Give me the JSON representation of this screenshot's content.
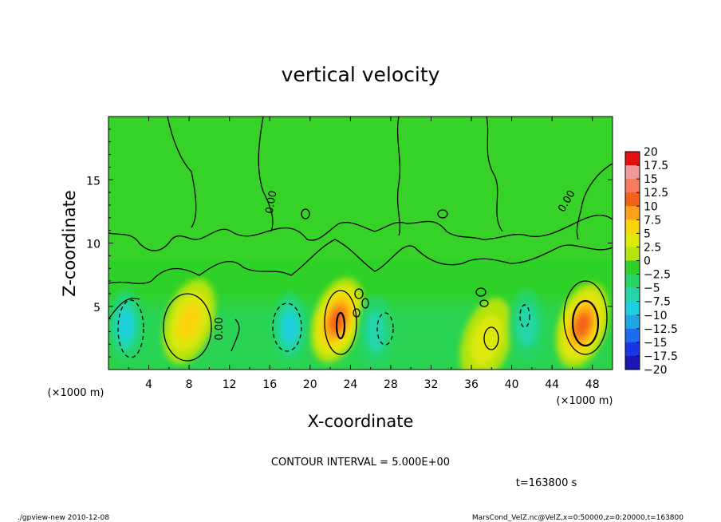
{
  "chart_data": {
    "type": "heatmap",
    "title": "vertical velocity",
    "xlabel": "X-coordinate",
    "ylabel": "Z-coordinate",
    "x_unit": "(×1000 m)",
    "y_unit": "(×1000 m)",
    "xlim": [
      0,
      50
    ],
    "ylim": [
      0,
      20
    ],
    "x_ticks": [
      4,
      8,
      12,
      16,
      20,
      24,
      28,
      32,
      36,
      40,
      44,
      48
    ],
    "y_ticks": [
      5,
      10,
      15
    ],
    "contour_interval": "CONTOUR INTERVAL = 5.000E+00",
    "time": "t=163800 s",
    "contour_label": "0.00",
    "colorbar": {
      "labels": [
        "20",
        "17.5",
        "15",
        "12.5",
        "10",
        "7.5",
        "5",
        "2.5",
        "0",
        "−2.5",
        "−5",
        "−7.5",
        "−10",
        "−12.5",
        "−15",
        "−17.5",
        "−20"
      ],
      "colors": [
        "#e71010",
        "#f29a9a",
        "#f87c5c",
        "#f46218",
        "#fba018",
        "#fbd40a",
        "#dee809",
        "#b4e30e",
        "#2ed127",
        "#27d466",
        "#22d6a8",
        "#1ecfe0",
        "#1fa4e6",
        "#1b6cf0",
        "#1636e8",
        "#1c16b5",
        "#5a15a8"
      ]
    },
    "features": [
      {
        "kind": "updraft",
        "x": 8.0,
        "z": 3.8,
        "peak": 7.5
      },
      {
        "kind": "updraft",
        "x": 22.7,
        "z": 3.9,
        "peak": 12.5
      },
      {
        "kind": "updraft",
        "x": 47.0,
        "z": 3.5,
        "peak": 12.5
      },
      {
        "kind": "updraft",
        "x": 37.5,
        "z": 2.3,
        "peak": 5
      },
      {
        "kind": "downdraft",
        "x": 1.7,
        "z": 3.5,
        "peak": -7.5
      },
      {
        "kind": "downdraft",
        "x": 18.0,
        "z": 3.3,
        "peak": -7.5
      },
      {
        "kind": "downdraft",
        "x": 26.5,
        "z": 3.0,
        "peak": -5
      },
      {
        "kind": "downdraft",
        "x": 41.5,
        "z": 3.5,
        "peak": -5
      }
    ]
  },
  "footer": {
    "left": "./gpview-new   2010-12-08",
    "right": "MarsCond_VelZ.nc@VelZ,x=0:50000,z=0:20000,t=163800"
  }
}
